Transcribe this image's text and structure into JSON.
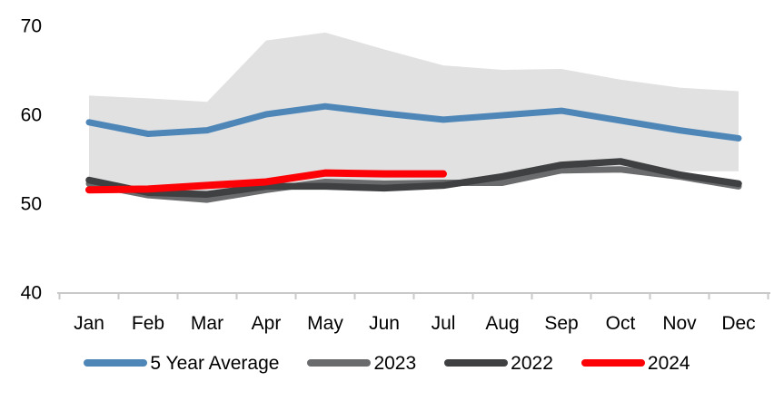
{
  "chart_data": {
    "type": "line",
    "title": "",
    "xlabel": "",
    "ylabel": "",
    "grid": false,
    "legend_position": "bottom",
    "categories": [
      "Jan",
      "Feb",
      "Mar",
      "Apr",
      "May",
      "Jun",
      "Jul",
      "Aug",
      "Sep",
      "Oct",
      "Nov",
      "Dec"
    ],
    "y_axis": {
      "min": 40,
      "max": 70,
      "ticks": [
        40,
        50,
        60,
        70
      ]
    },
    "band": {
      "name": "5-year-range-band",
      "color": "#E1E1E1",
      "max": [
        62.1,
        61.8,
        61.4,
        68.3,
        69.2,
        67.3,
        65.5,
        65.0,
        65.1,
        63.9,
        63.0,
        62.6
      ],
      "min": [
        51.8,
        51.4,
        51.2,
        51.8,
        52.3,
        52.4,
        52.5,
        52.7,
        53.3,
        53.6,
        53.6,
        53.6
      ]
    },
    "series": [
      {
        "name": "5 Year Average",
        "color": "#4E86B8",
        "width": 7,
        "values": [
          59.1,
          57.8,
          58.2,
          60.0,
          60.9,
          60.1,
          59.4,
          59.9,
          60.4,
          59.3,
          58.2,
          57.3
        ]
      },
      {
        "name": "2023",
        "color": "#6A6B6D",
        "width": 7,
        "values": [
          52.2,
          50.9,
          50.4,
          51.5,
          52.4,
          52.2,
          52.3,
          52.3,
          53.7,
          53.8,
          53.0,
          51.9
        ]
      },
      {
        "name": "2022",
        "color": "#3E4042",
        "width": 7.5,
        "values": [
          52.6,
          51.2,
          51.0,
          51.9,
          51.9,
          51.7,
          52.0,
          53.0,
          54.3,
          54.7,
          53.2,
          52.2
        ]
      },
      {
        "name": "2024",
        "color": "#FC0105",
        "width": 8,
        "values": [
          51.5,
          51.6,
          52.0,
          52.4,
          53.4,
          53.3,
          53.3
        ]
      }
    ],
    "axis_color": "#C9C9C9",
    "tick_label_size": 21
  }
}
